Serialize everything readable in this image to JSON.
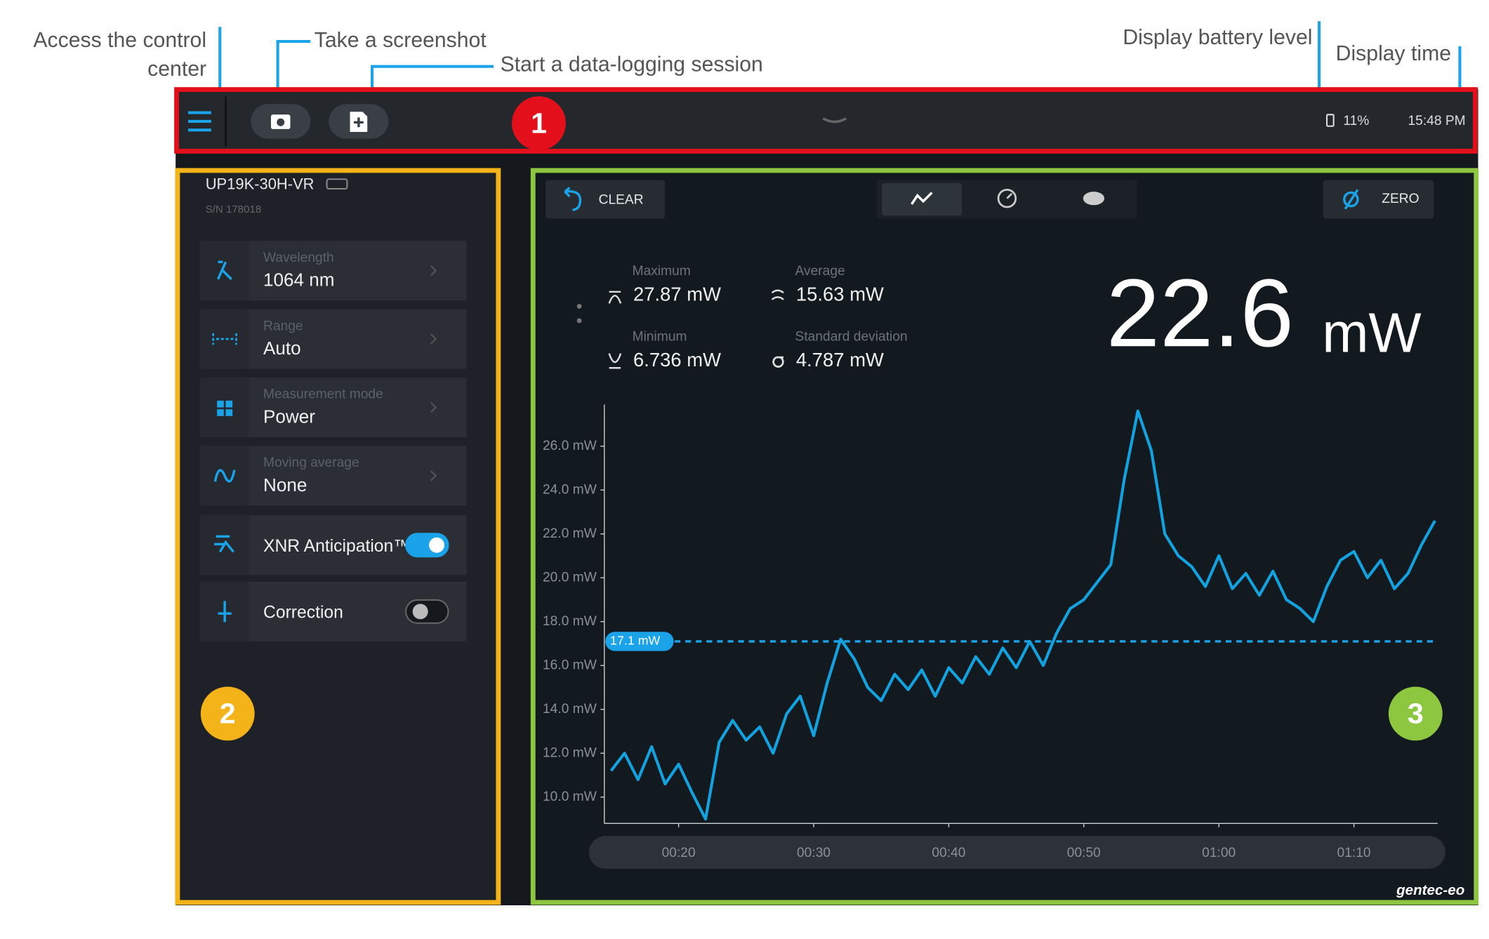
{
  "annotations": {
    "control_center": [
      "Access the control",
      "center"
    ],
    "screenshot": "Take a screenshot",
    "data_logging": "Start a data-logging session",
    "battery": "Display battery level",
    "time": "Display time"
  },
  "badges": [
    "1",
    "2",
    "3"
  ],
  "header": {
    "battery": "11%",
    "time": "15:48 PM"
  },
  "device": {
    "name": "UP19K-30H-VR",
    "serial": "S/N 178018",
    "settings": [
      {
        "label": "Wavelength",
        "value": "1064 nm"
      },
      {
        "label": "Range",
        "value": "Auto"
      },
      {
        "label": "Measurement mode",
        "value": "Power"
      },
      {
        "label": "Moving average",
        "value": "None"
      }
    ],
    "toggles": [
      {
        "label": "XNR Anticipation™",
        "on": true
      },
      {
        "label": "Correction",
        "on": false
      }
    ]
  },
  "toolbar": {
    "clear": "CLEAR",
    "zero": "ZERO"
  },
  "stats": [
    {
      "label": "Maximum",
      "value": "27.87 mW"
    },
    {
      "label": "Average",
      "value": "15.63 mW"
    },
    {
      "label": "Minimum",
      "value": "6.736 mW"
    },
    {
      "label": "Standard deviation",
      "value": "4.787 mW"
    }
  ],
  "reading": {
    "value": "22.6",
    "unit": "mW"
  },
  "logo": "gentec-eo",
  "chart_data": {
    "type": "line",
    "x": [
      15,
      16,
      17,
      18,
      19,
      20,
      21,
      22,
      23,
      24,
      25,
      26,
      27,
      28,
      29,
      30,
      31,
      32,
      33,
      34,
      35,
      36,
      37,
      38,
      39,
      40,
      41,
      42,
      43,
      44,
      45,
      46,
      47,
      48,
      49,
      50,
      51,
      52,
      53,
      54,
      55,
      56,
      57,
      58,
      59,
      60,
      61,
      62,
      63,
      64,
      65,
      66,
      67,
      68,
      69,
      70,
      71,
      72,
      73,
      74,
      75,
      76
    ],
    "series": [
      {
        "name": "Power",
        "color": "#12a2e0",
        "values": [
          11.2,
          12.0,
          10.8,
          12.3,
          10.6,
          11.5,
          10.2,
          9.0,
          12.5,
          13.5,
          12.6,
          13.2,
          12.0,
          13.8,
          14.6,
          12.8,
          15.2,
          17.2,
          16.3,
          15.0,
          14.4,
          15.6,
          14.9,
          15.8,
          14.6,
          15.9,
          15.2,
          16.4,
          15.6,
          16.8,
          15.9,
          17.1,
          16.0,
          17.5,
          18.6,
          19.0,
          19.8,
          20.6,
          24.5,
          27.6,
          25.8,
          22.0,
          21.0,
          20.5,
          19.6,
          21.0,
          19.5,
          20.2,
          19.2,
          20.3,
          19.0,
          18.6,
          18.0,
          19.6,
          20.8,
          21.2,
          20.0,
          20.8,
          19.5,
          20.2,
          21.5,
          22.6
        ]
      }
    ],
    "xlim": [
      14.5,
      76.2
    ],
    "ylim": [
      8.8,
      27.9
    ],
    "xticks": [
      {
        "value": 20,
        "label": "00:20"
      },
      {
        "value": 30,
        "label": "00:30"
      },
      {
        "value": 40,
        "label": "00:40"
      },
      {
        "value": 50,
        "label": "00:50"
      },
      {
        "value": 60,
        "label": "01:00"
      },
      {
        "value": 70,
        "label": "01:10"
      }
    ],
    "yticks": [
      {
        "value": 10,
        "label": "10.0 mW"
      },
      {
        "value": 12,
        "label": "12.0 mW"
      },
      {
        "value": 14,
        "label": "14.0 mW"
      },
      {
        "value": 16,
        "label": "16.0 mW"
      },
      {
        "value": 18,
        "label": "18.0 mW"
      },
      {
        "value": 20,
        "label": "20.0 mW"
      },
      {
        "value": 22,
        "label": "22.0 mW"
      },
      {
        "value": 24,
        "label": "24.0 mW"
      },
      {
        "value": 26,
        "label": "26.0 mW"
      }
    ],
    "reference_line": {
      "value": 17.1,
      "label": "17.1 mW"
    }
  }
}
